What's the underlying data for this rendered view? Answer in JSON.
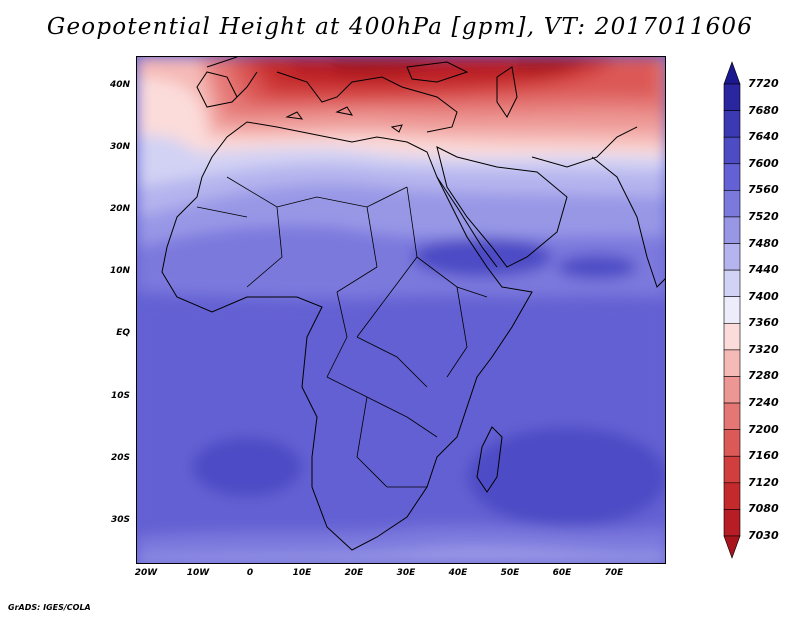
{
  "title": "Geopotential Height at 400hPa [gpm], VT: 2017011606",
  "credit": "GrADS: IGES/COLA",
  "chart_data": {
    "type": "heatmap",
    "variable": "Geopotential Height",
    "level": "400hPa",
    "units": "gpm",
    "valid_time": "2017011606",
    "x_ticks": [
      "20W",
      "10W",
      "0",
      "10E",
      "20E",
      "30E",
      "40E",
      "50E",
      "60E",
      "70E"
    ],
    "y_ticks": [
      "40N",
      "30N",
      "20N",
      "10N",
      "EQ",
      "10S",
      "20S",
      "30S"
    ],
    "xlim": [
      -22,
      80
    ],
    "ylim": [
      -36,
      45
    ],
    "colorbar_levels": [
      7030,
      7080,
      7120,
      7160,
      7200,
      7240,
      7280,
      7320,
      7360,
      7400,
      7440,
      7480,
      7520,
      7560,
      7600,
      7640,
      7680,
      7720
    ],
    "colorbar_colors": [
      "#a8141c",
      "#b71d25",
      "#c42a2c",
      "#d03e3d",
      "#db5957",
      "#e47774",
      "#ed9794",
      "#f5b9b6",
      "#fbdcda",
      "#ececfa",
      "#d2d2f4",
      "#b5b4ee",
      "#9897e6",
      "#7b79dd",
      "#6361d3",
      "#4e4cc5",
      "#3c39b4",
      "#2a26a0",
      "#1c1890"
    ]
  }
}
